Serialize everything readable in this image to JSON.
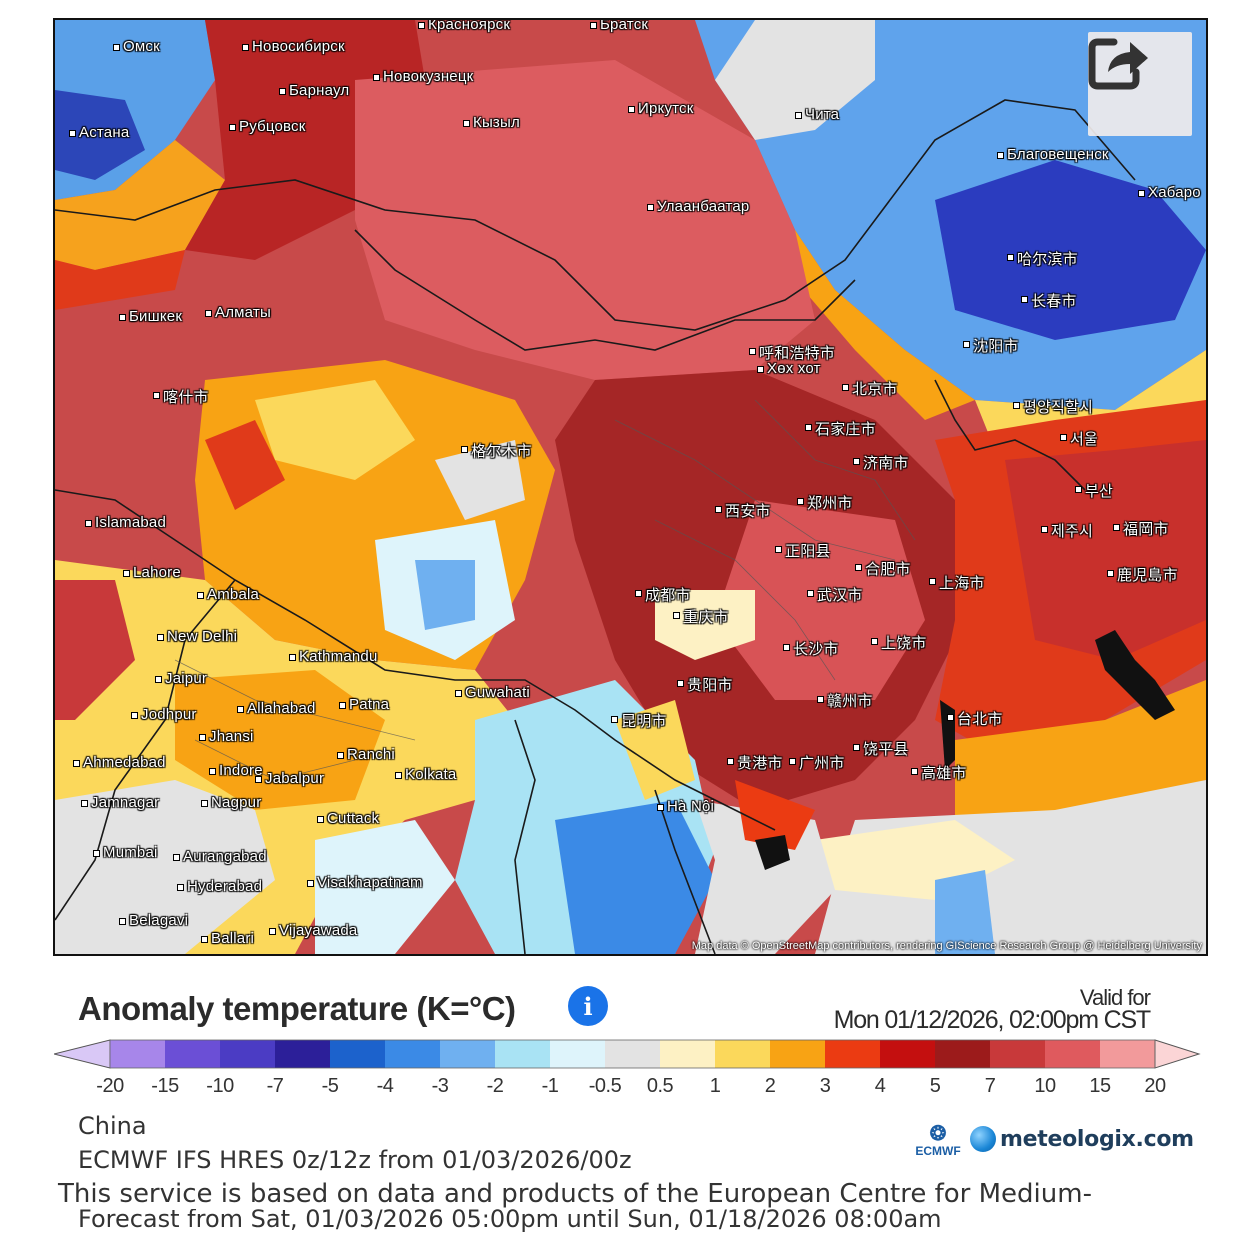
{
  "map": {
    "attribution": "Map data © OpenStreetMap contributors, rendering GIScience Research Group @ Heidelberg University",
    "cities": [
      "Омск",
      "Новосибирск",
      "Красноярск",
      "Братск",
      "Барнаул",
      "Новокузнецк",
      "Иркутск",
      "Чита",
      "Астана",
      "Рубцовск",
      "Кызыл",
      "Благовещенск",
      "Хабаро",
      "Улаанбаатар",
      "哈尔滨市",
      "长春市",
      "Бишкек",
      "Алматы",
      "沈阳市",
      "呼和浩特市",
      "Хөх хот",
      "北京市",
      "평양직할시",
      "서울",
      "石家庄市",
      "济南市",
      "喀什市",
      "格尔木市",
      "Islamabad",
      "西安市",
      "郑州市",
      "부산",
      "제주시",
      "福岡市",
      "Lahore",
      "正阳县",
      "合肥市",
      "上海市",
      "鹿児島市",
      "Ambala",
      "成都市",
      "武汉市",
      "重庆市",
      "New Delhi",
      "长沙市",
      "上饶市",
      "Kathmandu",
      "Jaipur",
      "Guwahati",
      "贵阳市",
      "Jodhpur",
      "Allahabad",
      "Patna",
      "昆明市",
      "赣州市",
      "Jhansi",
      "Ranchi",
      "台北市",
      "Ahmedabad",
      "Indore",
      "Jabalpur",
      "Kolkata",
      "贵港市",
      "广州市",
      "饶平县",
      "高雄市",
      "Jamnagar",
      "Nagpur",
      "Hà Nội",
      "Cuttack",
      "Mumbai",
      "Aurangabad",
      "Hyderabad",
      "Visakhapatnam",
      "Belagavi",
      "Ballari",
      "Vijayawada"
    ]
  },
  "legend": {
    "title": "Anomaly temperature (K=°C)",
    "valid_for_label": "Valid for",
    "valid_for_date": "Mon 01/12/2026, 02:00pm CST",
    "ticks": [
      "-20",
      "-15",
      "-10",
      "-7",
      "-5",
      "-4",
      "-3",
      "-2",
      "-1",
      "-0.5",
      "0.5",
      "1",
      "2",
      "3",
      "4",
      "5",
      "7",
      "10",
      "15",
      "20"
    ],
    "colors": [
      "#d9c8f6",
      "#a786ea",
      "#6b4fd6",
      "#4b3cc4",
      "#2c1f99",
      "#1c62cc",
      "#3b8ae6",
      "#6fb0f0",
      "#a9e3f4",
      "#def4fb",
      "#e3e3e3",
      "#fdf1c4",
      "#fbd85b",
      "#f8a314",
      "#eb3b12",
      "#c40f0f",
      "#9c1b1b",
      "#c8393a",
      "#df5a5e",
      "#f29a9b",
      "#fbd5d6"
    ]
  },
  "meta": {
    "region": "China",
    "model": "ECMWF IFS HRES 0z/12z from 01/03/2026/00z",
    "disclaimer": "This service is based on data and products of the European Centre for Medium-",
    "forecast": "Forecast from Sat, 01/03/2026 05:00pm until Sun, 01/18/2026 08:00am"
  },
  "brand": {
    "ecmwf": "ECMWF",
    "site": "meteologix.com"
  }
}
